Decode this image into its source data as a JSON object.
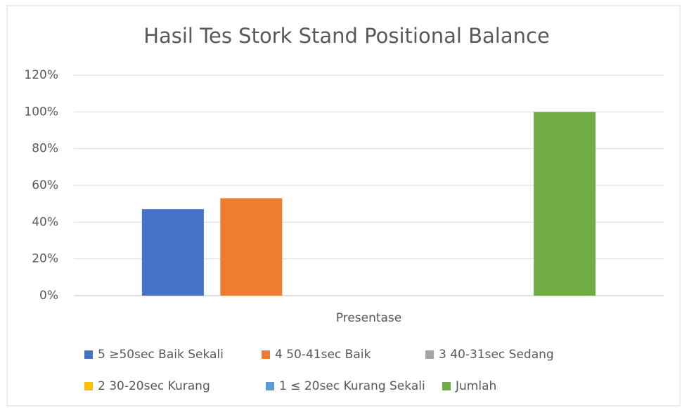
{
  "chart_data": {
    "type": "bar",
    "title": "Hasil Tes Stork Stand Positional Balance",
    "categories": [
      "Presentase"
    ],
    "series": [
      {
        "name": "5 ≥50sec Baik Sekali",
        "color": "#4472c4",
        "values": [
          47
        ]
      },
      {
        "name": "4 50-41sec Baik",
        "color": "#ed7d31",
        "values": [
          53
        ]
      },
      {
        "name": "3 40-31sec Sedang",
        "color": "#a5a5a5",
        "values": [
          0
        ]
      },
      {
        "name": "2 30-20sec Kurang",
        "color": "#ffc000",
        "values": [
          0
        ]
      },
      {
        "name": "1 ≤ 20sec Kurang Sekali",
        "color": "#5b9bd5",
        "values": [
          0
        ]
      },
      {
        "name": "Jumlah",
        "color": "#70ad47",
        "values": [
          100
        ]
      }
    ],
    "ylim": [
      0,
      120
    ],
    "yticks": [
      {
        "value": 0,
        "label": "0%"
      },
      {
        "value": 20,
        "label": "20%"
      },
      {
        "value": 40,
        "label": "40%"
      },
      {
        "value": 60,
        "label": "60%"
      },
      {
        "value": 80,
        "label": "80%"
      },
      {
        "value": 100,
        "label": "100%"
      },
      {
        "value": 120,
        "label": "120%"
      }
    ],
    "grid": true,
    "legend": "bottom"
  }
}
